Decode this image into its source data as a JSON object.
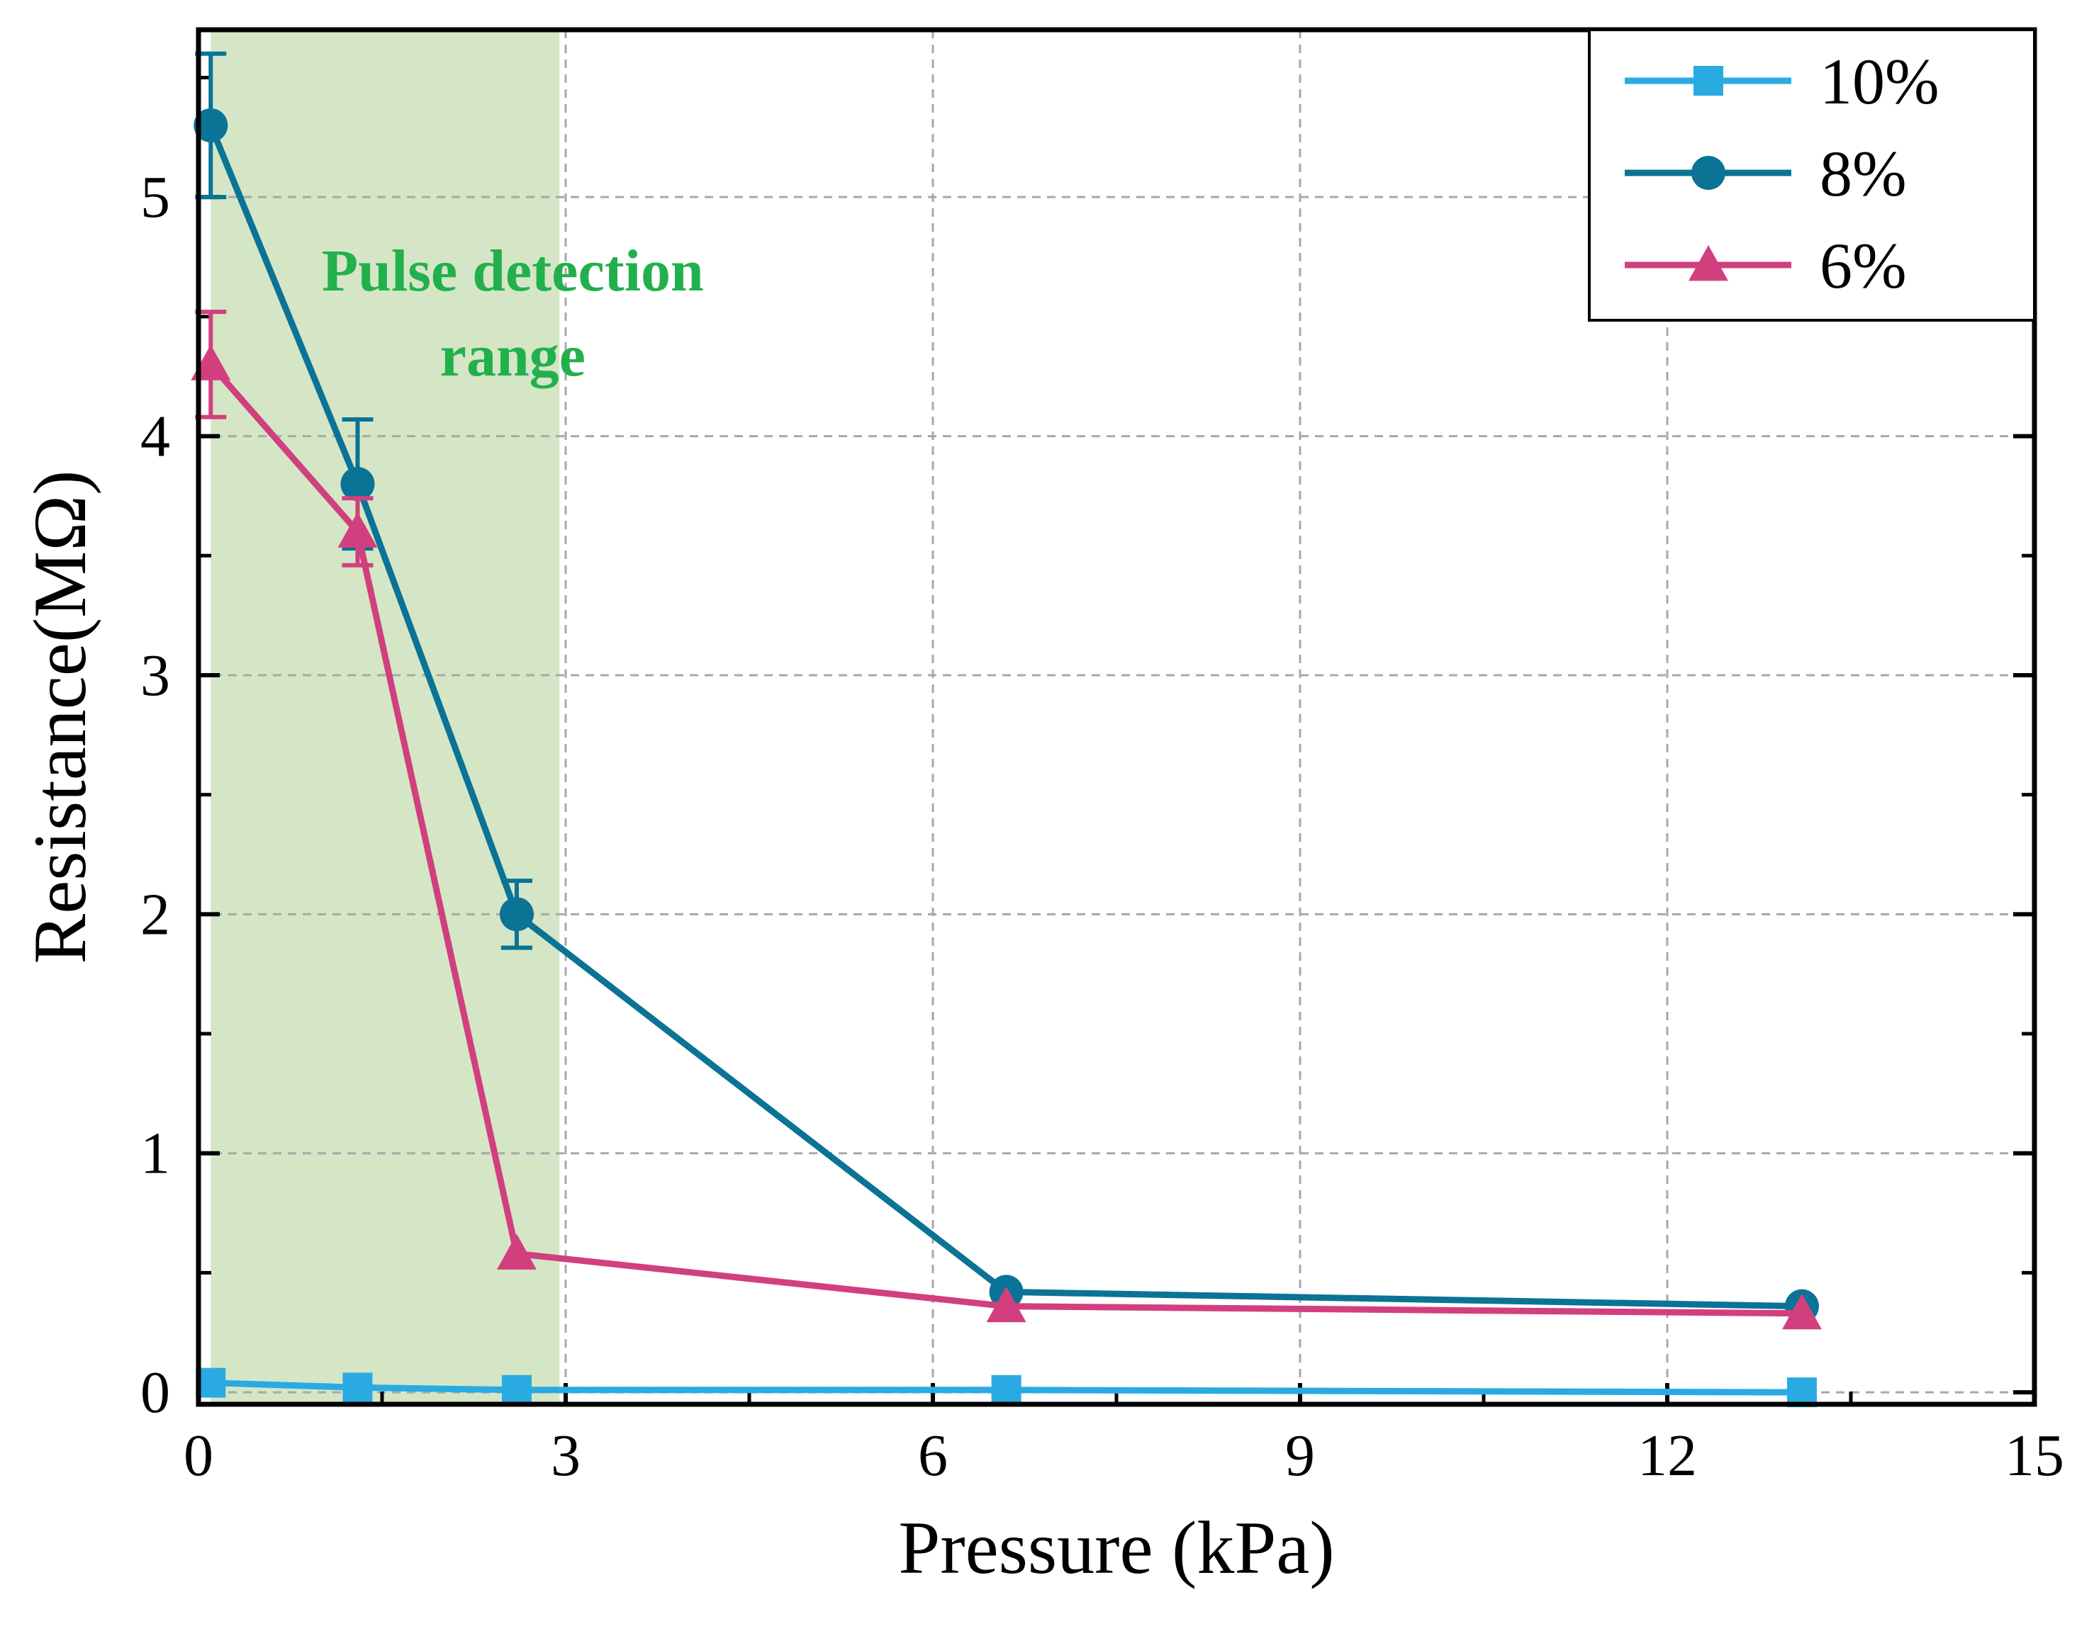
{
  "chart_data": {
    "type": "line",
    "title": "",
    "xlabel": "Pressure (kPa)",
    "ylabel": "Resistance(MΩ)",
    "xlim": [
      0,
      15
    ],
    "ylim": [
      -0.05,
      5.7
    ],
    "xticks": [
      0,
      3,
      6,
      9,
      12,
      15
    ],
    "xtick_labels": [
      "0",
      "3",
      "6",
      "9",
      "12",
      "15"
    ],
    "yticks": [
      0,
      1,
      2,
      3,
      4,
      5
    ],
    "ytick_labels": [
      "0",
      "1",
      "2",
      "3",
      "4",
      "5"
    ],
    "grid": true,
    "legend_position": "top-right",
    "shaded_region": {
      "x_range": [
        0.1,
        2.95
      ],
      "color": "#d4e6c6",
      "label_lines": [
        "Pulse detection",
        "range"
      ],
      "label_color": "#22b04c"
    },
    "series": [
      {
        "name": "10%",
        "color": "#29abe2",
        "marker": "square",
        "x": [
          0.1,
          1.3,
          2.6,
          6.6,
          13.1
        ],
        "values": [
          0.04,
          0.02,
          0.01,
          0.01,
          0.0
        ],
        "errors": [
          0,
          0,
          0,
          0,
          0
        ]
      },
      {
        "name": "8%",
        "color": "#0b7395",
        "marker": "circle",
        "x": [
          0.1,
          1.3,
          2.6,
          6.6,
          13.1
        ],
        "values": [
          5.3,
          3.8,
          2.0,
          0.42,
          0.36
        ],
        "errors": [
          0.3,
          0.27,
          0.14,
          0,
          0
        ]
      },
      {
        "name": "6%",
        "color": "#d23f7f",
        "marker": "triangle",
        "x": [
          0.1,
          1.3,
          2.6,
          6.6,
          13.1
        ],
        "values": [
          4.3,
          3.6,
          0.58,
          0.36,
          0.33
        ],
        "errors": [
          0.22,
          0.14,
          0,
          0,
          0
        ]
      }
    ]
  }
}
